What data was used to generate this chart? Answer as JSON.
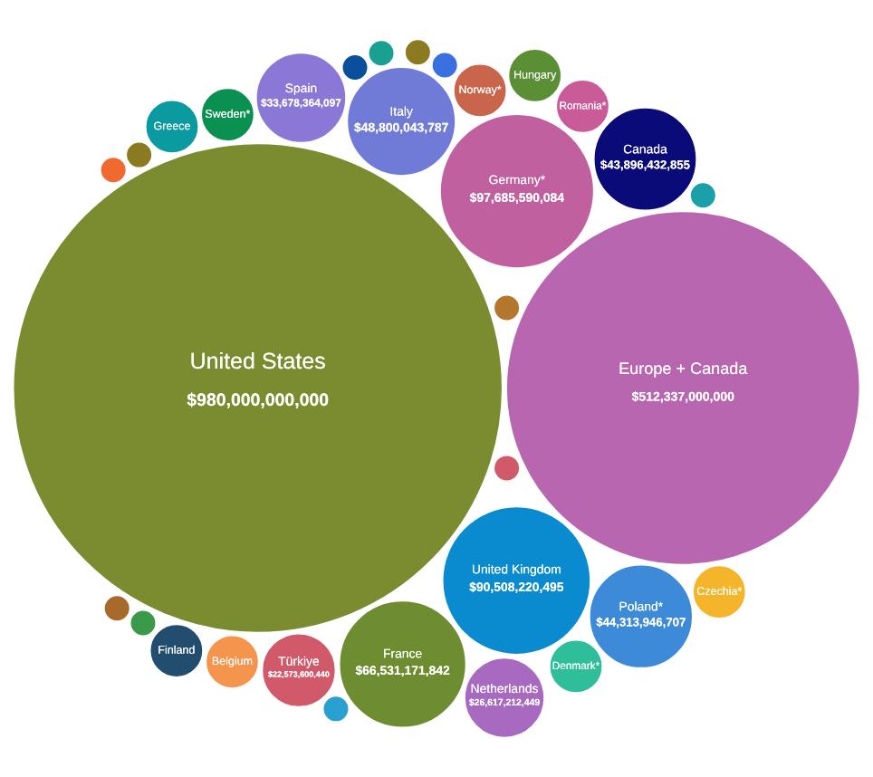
{
  "chart_data": {
    "type": "other",
    "categories": [
      "United States",
      "Europe + Canada",
      "Germany*",
      "United Kingdom",
      "France",
      "Italy",
      "Poland*",
      "Canada",
      "Spain",
      "Türkiye",
      "Netherlands",
      "Norway*",
      "Belgium",
      "Sweden*",
      "Denmark*",
      "Romania*",
      "Finland",
      "Greece",
      "Hungary",
      "Czechia*",
      null,
      null,
      null,
      null,
      null,
      null,
      null,
      null,
      null,
      null,
      null,
      null
    ],
    "values": [
      980000000000,
      512337000000,
      97685590084,
      90508220495,
      66531171842,
      48800043787,
      44313946707,
      43896432855,
      33678364097,
      22573600440,
      26617212449,
      null,
      null,
      null,
      null,
      null,
      null,
      null,
      null,
      null,
      null,
      null,
      null,
      null,
      null,
      null,
      null,
      null,
      null,
      null,
      null,
      null
    ],
    "value_labels": [
      "$980,000,000,000",
      "$512,337,000,000",
      "$97,685,590,084",
      "$90,508,220,495",
      "$66,531,171,842",
      "$48,800,043,787",
      "$44,313,946,707",
      "$43,896,432,855",
      "$33,678,364,097",
      "$22,573,600,440",
      "$26,617,212,449",
      null,
      null,
      null,
      null,
      null,
      null,
      null,
      null,
      null,
      null,
      null,
      null,
      null,
      null,
      null,
      null,
      null,
      null,
      null,
      null,
      null
    ],
    "colors": [
      "#7a8c2f",
      "#b866b0",
      "#c0609f",
      "#0a8bcf",
      "#6e8c30",
      "#6f7bd6",
      "#3d8ad8",
      "#0a0a78",
      "#8b78d6",
      "#d05a6a",
      "#a86ac0",
      "#c8654a",
      "#f5954d",
      "#0a9050",
      "#2ebf9a",
      "#c95c98",
      "#234d6e",
      "#0a9aa0",
      "#5b8f35",
      "#f5b52a",
      "#b5772d",
      "#d05a6a",
      "#1aa0a8",
      "#0a4f99",
      "#3a6fe0",
      "#2aa0d0",
      "#3a9a4a",
      "#8b7a20",
      "#a86a2a",
      "#f06a30",
      "#1aa090",
      "#8b7a20"
    ]
  }
}
